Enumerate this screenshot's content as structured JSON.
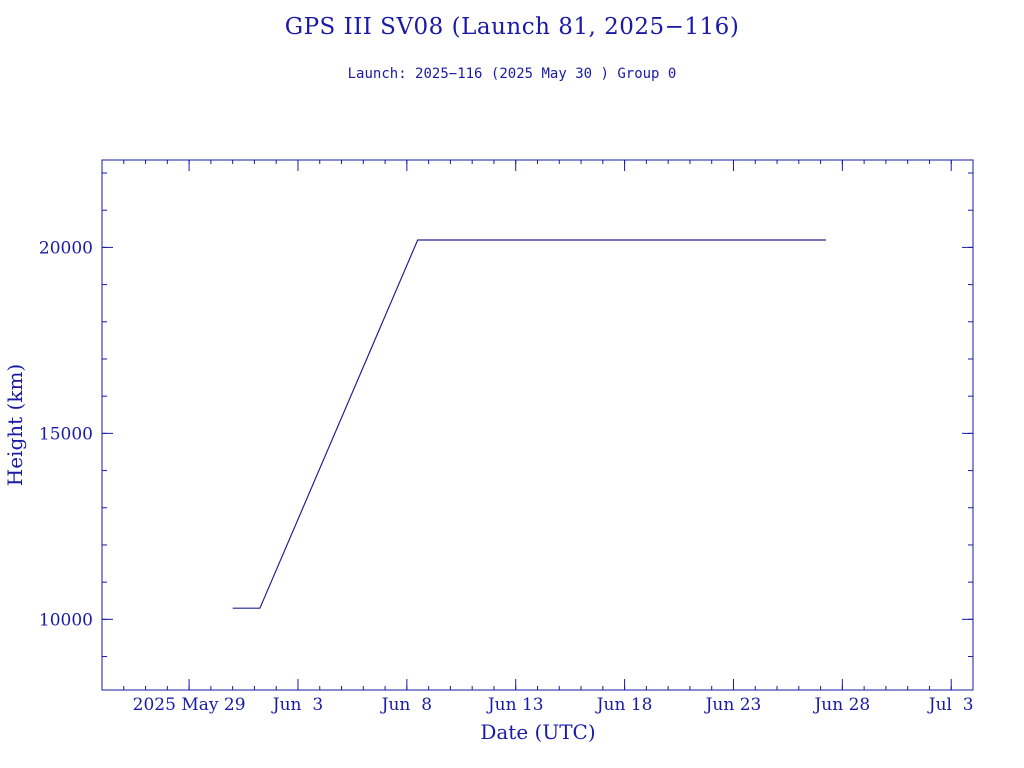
{
  "chart_data": {
    "type": "line",
    "title": "GPS III SV08 (Launch 81, 2025−116)",
    "subtitle": "Launch: 2025−116  (2025 May 30 )  Group 0",
    "xlabel": "Date (UTC)",
    "ylabel": "Height (km)",
    "x_ticks": [
      {
        "label": "2025 May 29",
        "date": "2025-05-29"
      },
      {
        "label": "Jun  3",
        "date": "2025-06-03"
      },
      {
        "label": "Jun  8",
        "date": "2025-06-08"
      },
      {
        "label": "Jun 13",
        "date": "2025-06-13"
      },
      {
        "label": "Jun 18",
        "date": "2025-06-18"
      },
      {
        "label": "Jun 23",
        "date": "2025-06-23"
      },
      {
        "label": "Jun 28",
        "date": "2025-06-28"
      },
      {
        "label": "Jul  3",
        "date": "2025-07-03"
      }
    ],
    "y_ticks": [
      10000,
      15000,
      20000
    ],
    "xlim": [
      "2025-05-25",
      "2025-07-04"
    ],
    "ylim": [
      8100,
      22350
    ],
    "series": [
      {
        "x": [
          "2025-05-31",
          "2025-06-01 06:00",
          "2025-06-08 12:00",
          "2025-06-27 06:00"
        ],
        "y": [
          10300,
          10300,
          20200,
          20200
        ]
      }
    ],
    "colors": {
      "ink": "#1a1aa6",
      "line": "#23238e"
    },
    "grid": false
  }
}
